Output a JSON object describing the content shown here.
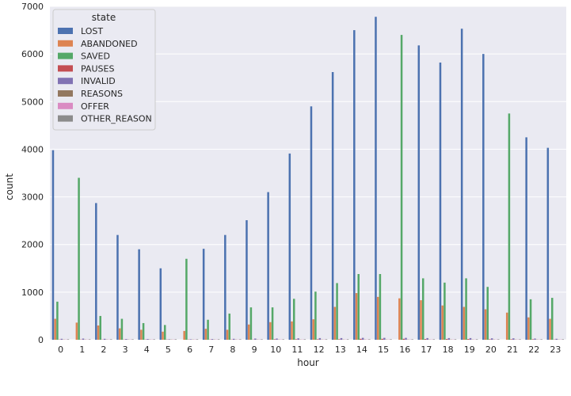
{
  "chart_data": {
    "type": "bar",
    "xlabel": "hour",
    "ylabel": "count",
    "ylim": [
      0,
      7000
    ],
    "yticks": [
      "0",
      "1000",
      "2000",
      "3000",
      "4000",
      "5000",
      "6000",
      "7000"
    ],
    "grid": true,
    "legend_title": "state",
    "legend_position": "top-left",
    "categories": [
      "0",
      "1",
      "2",
      "3",
      "4",
      "5",
      "6",
      "7",
      "8",
      "9",
      "10",
      "11",
      "12",
      "13",
      "14",
      "15",
      "16",
      "17",
      "18",
      "19",
      "20",
      "21",
      "22",
      "23"
    ],
    "series": [
      {
        "name": "LOST",
        "color": "#4c72b0",
        "values": [
          3980,
          0,
          2870,
          2200,
          1900,
          1500,
          0,
          1910,
          2200,
          2510,
          3100,
          3910,
          4900,
          5620,
          6500,
          6780,
          0,
          6180,
          5820,
          6530,
          6000,
          0,
          4250,
          4030
        ]
      },
      {
        "name": "ABANDONED",
        "color": "#dd8452",
        "values": [
          440,
          360,
          300,
          240,
          210,
          170,
          185,
          230,
          210,
          320,
          370,
          385,
          430,
          690,
          980,
          900,
          870,
          830,
          720,
          690,
          640,
          570,
          470,
          440
        ]
      },
      {
        "name": "SAVED",
        "color": "#55a868",
        "values": [
          800,
          3400,
          500,
          440,
          350,
          310,
          1700,
          420,
          550,
          680,
          680,
          860,
          1010,
          1190,
          1380,
          1380,
          6400,
          1290,
          1200,
          1290,
          1110,
          4750,
          850,
          880
        ]
      },
      {
        "name": "PAUSES",
        "color": "#c44e52",
        "values": [
          5,
          5,
          5,
          5,
          5,
          5,
          5,
          5,
          5,
          5,
          10,
          10,
          10,
          10,
          20,
          20,
          20,
          15,
          15,
          15,
          10,
          10,
          10,
          5
        ]
      },
      {
        "name": "INVALID",
        "color": "#8172b3",
        "values": [
          20,
          25,
          20,
          15,
          15,
          10,
          10,
          15,
          20,
          25,
          25,
          30,
          35,
          35,
          40,
          40,
          40,
          35,
          35,
          35,
          30,
          30,
          25,
          20
        ]
      },
      {
        "name": "REASONS",
        "color": "#937860",
        "values": [
          5,
          5,
          5,
          5,
          5,
          5,
          5,
          5,
          5,
          5,
          5,
          5,
          5,
          5,
          5,
          5,
          5,
          5,
          5,
          5,
          5,
          5,
          5,
          5
        ]
      },
      {
        "name": "OFFER",
        "color": "#da8bc3",
        "values": [
          5,
          5,
          5,
          5,
          5,
          5,
          5,
          5,
          5,
          5,
          5,
          5,
          5,
          5,
          5,
          5,
          5,
          5,
          5,
          5,
          5,
          5,
          5,
          5
        ]
      },
      {
        "name": "OTHER_REASON",
        "color": "#8c8c8c",
        "values": [
          10,
          10,
          10,
          10,
          10,
          10,
          10,
          10,
          10,
          10,
          10,
          10,
          10,
          10,
          10,
          10,
          10,
          10,
          10,
          10,
          10,
          10,
          10,
          10
        ]
      }
    ]
  },
  "colors": {
    "plot_background": "#eaeaf2",
    "grid": "#ffffff",
    "text": "#262626"
  }
}
